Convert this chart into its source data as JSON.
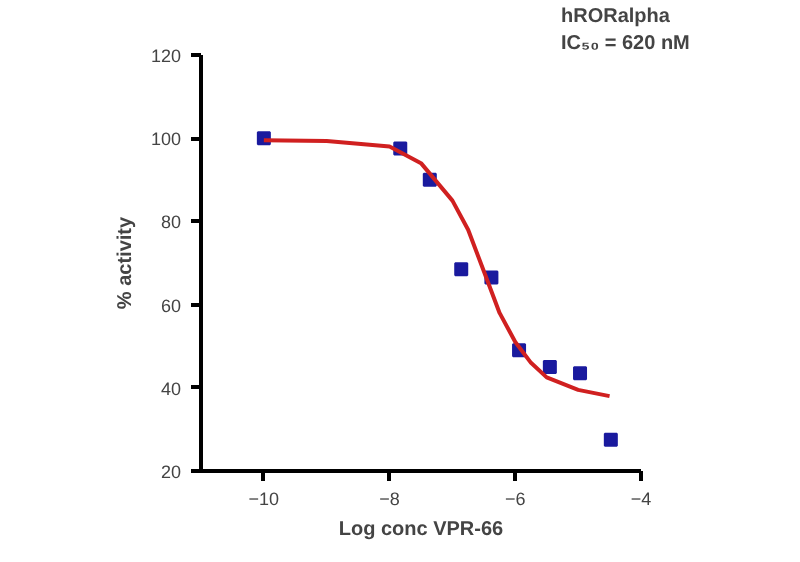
{
  "chart_data": {
    "type": "scatter",
    "xlabel": "Log conc VPR-66",
    "ylabel": "% activity",
    "annotations": [
      "hRORalpha",
      "IC₅₀ = 620 nM"
    ],
    "xlim": [
      -11,
      -4
    ],
    "xticks": [
      -10,
      -8,
      -6,
      -4
    ],
    "ylim": [
      20,
      120
    ],
    "yticks": [
      20,
      40,
      60,
      80,
      100,
      120
    ],
    "grid": false,
    "series": [
      {
        "color": "#1a1a9e",
        "marker": "square",
        "x": [
          -10,
          -7.83,
          -7.36,
          -6.86,
          -6.38,
          -5.94,
          -5.45,
          -4.97,
          -4.48
        ],
        "values": [
          100,
          97.5,
          90,
          68.5,
          66.5,
          49,
          45,
          43.5,
          27.5
        ]
      },
      {
        "type": "line",
        "color": "#d02020",
        "line_style": "solid",
        "x": [
          -10,
          -9,
          -8,
          -7.5,
          -7,
          -6.75,
          -6.5,
          -6.25,
          -6,
          -5.75,
          -5.5,
          -5,
          -4.5
        ],
        "values": [
          99.5,
          99.3,
          98,
          94,
          85,
          78,
          68,
          58,
          51,
          46,
          42.5,
          39.5,
          38
        ]
      }
    ]
  }
}
